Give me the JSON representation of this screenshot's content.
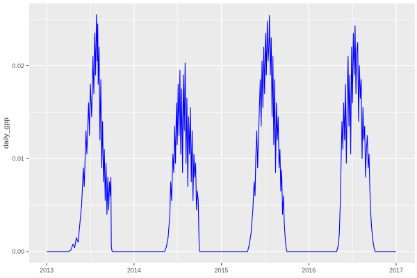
{
  "chart_data": {
    "type": "line",
    "title": "",
    "xlabel": "",
    "ylabel": "daily_gpp",
    "legend": "none",
    "grid": true,
    "theme": "ggplot-grey",
    "panel_bg": "#EBEBEB",
    "grid_color": "#FFFFFF",
    "tick_mark_color": "#333333",
    "tick_label_color": "#4D4D4D",
    "line_color": "#0000FF",
    "xlim": [
      2012.8,
      2017.215
    ],
    "ylim": [
      -0.0012,
      0.0267
    ],
    "x_ticks": [
      2013,
      2014,
      2015,
      2016,
      2017
    ],
    "x_tick_labels": [
      "2013",
      "2014",
      "2015",
      "2016",
      "2017"
    ],
    "x_minor": [
      2013.5,
      2014.5,
      2015.5,
      2016.5
    ],
    "y_ticks": [
      0,
      0.01,
      0.02
    ],
    "y_tick_labels": [
      "0.00",
      "0.01",
      "0.02"
    ],
    "y_minor": [
      0.005,
      0.015,
      0.025
    ],
    "annual_peaks": [
      {
        "year": 2013,
        "peak_value": 0.0255,
        "peak_time": 2013.57
      },
      {
        "year": 2014,
        "peak_value": 0.0203,
        "peak_time": 2014.585
      },
      {
        "year": 2015,
        "peak_value": 0.0254,
        "peak_time": 2015.55
      },
      {
        "year": 2016,
        "peak_value": 0.0243,
        "peak_time": 2016.53
      }
    ],
    "series": [
      {
        "name": "daily_gpp",
        "x": [
          2013.0,
          2013.05,
          2013.1,
          2013.15,
          2013.2,
          2013.25,
          2013.28,
          2013.3,
          2013.32,
          2013.34,
          2013.36,
          2013.38,
          2013.4,
          2013.42,
          2013.43,
          2013.45,
          2013.46,
          2013.48,
          2013.49,
          2013.5,
          2013.515,
          2013.53,
          2013.54,
          2013.55,
          2013.56,
          2013.57,
          2013.58,
          2013.585,
          2013.59,
          2013.6,
          2013.61,
          2013.62,
          2013.63,
          2013.64,
          2013.65,
          2013.66,
          2013.67,
          2013.68,
          2013.69,
          2013.7,
          2013.71,
          2013.72,
          2013.73,
          2013.735,
          2013.74,
          2013.75,
          2013.8,
          2013.85,
          2013.9,
          2013.95,
          2014.0,
          2014.05,
          2014.1,
          2014.15,
          2014.2,
          2014.25,
          2014.3,
          2014.35,
          2014.37,
          2014.39,
          2014.41,
          2014.42,
          2014.43,
          2014.445,
          2014.455,
          2014.465,
          2014.475,
          2014.485,
          2014.495,
          2014.505,
          2014.515,
          2014.525,
          2014.535,
          2014.545,
          2014.555,
          2014.565,
          2014.575,
          2014.585,
          2014.595,
          2014.605,
          2014.615,
          2014.625,
          2014.635,
          2014.645,
          2014.655,
          2014.665,
          2014.675,
          2014.685,
          2014.695,
          2014.705,
          2014.715,
          2014.725,
          2014.735,
          2014.745,
          2014.75,
          2014.8,
          2014.85,
          2014.9,
          2014.95,
          2015.0,
          2015.05,
          2015.1,
          2015.15,
          2015.2,
          2015.25,
          2015.3,
          2015.32,
          2015.34,
          2015.36,
          2015.375,
          2015.385,
          2015.395,
          2015.405,
          2015.415,
          2015.425,
          2015.435,
          2015.445,
          2015.455,
          2015.465,
          2015.475,
          2015.485,
          2015.495,
          2015.505,
          2015.515,
          2015.525,
          2015.535,
          2015.545,
          2015.55,
          2015.56,
          2015.57,
          2015.58,
          2015.59,
          2015.6,
          2015.61,
          2015.62,
          2015.63,
          2015.64,
          2015.65,
          2015.66,
          2015.67,
          2015.68,
          2015.69,
          2015.7,
          2015.71,
          2015.72,
          2015.73,
          2015.74,
          2015.75,
          2015.8,
          2015.85,
          2015.9,
          2015.95,
          2016.0,
          2016.05,
          2016.1,
          2016.15,
          2016.2,
          2016.25,
          2016.3,
          2016.32,
          2016.34,
          2016.35,
          2016.36,
          2016.37,
          2016.38,
          2016.39,
          2016.4,
          2016.41,
          2016.42,
          2016.43,
          2016.44,
          2016.45,
          2016.46,
          2016.47,
          2016.48,
          2016.49,
          2016.5,
          2016.51,
          2016.52,
          2016.53,
          2016.54,
          2016.55,
          2016.56,
          2016.57,
          2016.58,
          2016.59,
          2016.6,
          2016.61,
          2016.62,
          2016.63,
          2016.64,
          2016.65,
          2016.66,
          2016.67,
          2016.68,
          2016.69,
          2016.7,
          2016.71,
          2016.72,
          2016.73,
          2016.74,
          2016.75,
          2016.76,
          2016.8,
          2016.85,
          2016.9,
          2016.95,
          2017.0
        ],
        "y": [
          0,
          0,
          0,
          0,
          0,
          0,
          0.0002,
          0.0008,
          0.0004,
          0.0015,
          0.001,
          0.003,
          0.005,
          0.009,
          0.007,
          0.013,
          0.0105,
          0.016,
          0.0125,
          0.018,
          0.0145,
          0.021,
          0.017,
          0.0235,
          0.019,
          0.0255,
          0.0205,
          0.0245,
          0.018,
          0.022,
          0.012,
          0.0185,
          0.009,
          0.014,
          0.0075,
          0.011,
          0.0055,
          0.0095,
          0.004,
          0.008,
          0.0045,
          0.0075,
          0.006,
          0.008,
          0.0005,
          0,
          0,
          0,
          0,
          0,
          0,
          0,
          0,
          0,
          0,
          0,
          0,
          0,
          0.0005,
          0.0015,
          0.004,
          0.0075,
          0.0055,
          0.0105,
          0.0085,
          0.0135,
          0.0095,
          0.016,
          0.0115,
          0.018,
          0.0125,
          0.0195,
          0.0105,
          0.0175,
          0.0085,
          0.019,
          0.013,
          0.0203,
          0.0095,
          0.0165,
          0.007,
          0.0145,
          0.0105,
          0.0155,
          0.0075,
          0.013,
          0.0055,
          0.0105,
          0.008,
          0.0095,
          0.0045,
          0.0065,
          0.0055,
          0.0008,
          0,
          0,
          0,
          0,
          0,
          0,
          0,
          0,
          0,
          0,
          0,
          0,
          0.0008,
          0.002,
          0.0045,
          0.0075,
          0.006,
          0.0105,
          0.013,
          0.009,
          0.0125,
          0.0155,
          0.0185,
          0.0135,
          0.0205,
          0.0155,
          0.022,
          0.017,
          0.0235,
          0.019,
          0.0248,
          0.0205,
          0.0225,
          0.0254,
          0.019,
          0.023,
          0.0145,
          0.021,
          0.0115,
          0.0185,
          0.0085,
          0.016,
          0.012,
          0.0145,
          0.009,
          0.011,
          0.0065,
          0.0088,
          0.004,
          0.006,
          0.003,
          0.0015,
          0.0005,
          0,
          0,
          0,
          0,
          0,
          0,
          0,
          0,
          0,
          0,
          0,
          0,
          0,
          0.0008,
          0.002,
          0.005,
          0.0095,
          0.014,
          0.011,
          0.016,
          0.012,
          0.018,
          0.0095,
          0.0165,
          0.021,
          0.0135,
          0.019,
          0.0105,
          0.022,
          0.016,
          0.0235,
          0.019,
          0.0243,
          0.017,
          0.0215,
          0.0225,
          0.014,
          0.02,
          0.0165,
          0.0185,
          0.01,
          0.0155,
          0.012,
          0.0135,
          0.008,
          0.011,
          0.0125,
          0.009,
          0.0105,
          0.0065,
          0.004,
          0.0025,
          0.0015,
          0.0008,
          0.0003,
          0,
          0,
          0,
          0,
          0,
          0
        ]
      }
    ]
  }
}
